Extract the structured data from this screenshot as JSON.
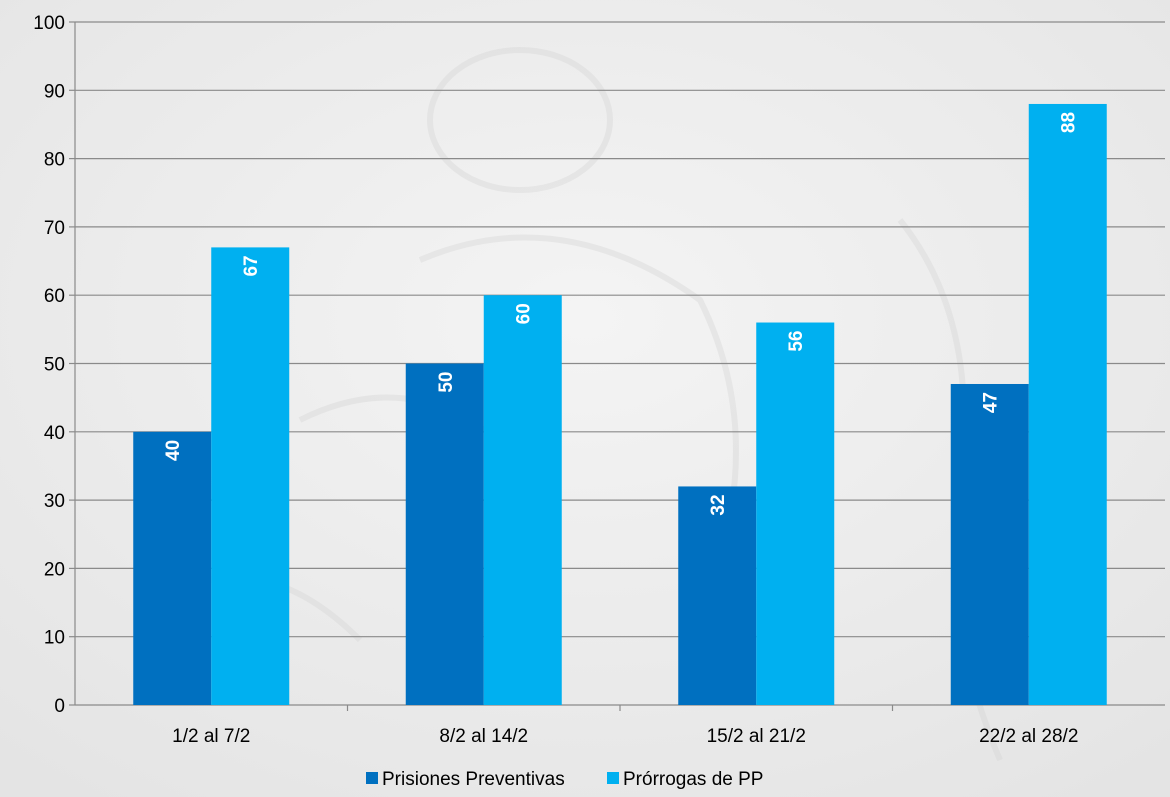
{
  "chart_data": {
    "type": "bar",
    "categories": [
      "1/2 al 7/2",
      "8/2 al 14/2",
      "15/2 al 21/2",
      "22/2 al 28/2"
    ],
    "series": [
      {
        "name": "Prisiones Preventivas",
        "values": [
          40,
          50,
          32,
          47
        ],
        "color": "#0070c0"
      },
      {
        "name": "Prórrogas de PP",
        "values": [
          67,
          60,
          56,
          88
        ],
        "color": "#00b0f0"
      }
    ],
    "title": "",
    "xlabel": "",
    "ylabel": "",
    "ylim": [
      0,
      100
    ],
    "yticks": [
      0,
      10,
      20,
      30,
      40,
      50,
      60,
      70,
      80,
      90,
      100
    ],
    "grid": true,
    "legend": "bottom",
    "data_labels": "rotated-inside-top"
  }
}
